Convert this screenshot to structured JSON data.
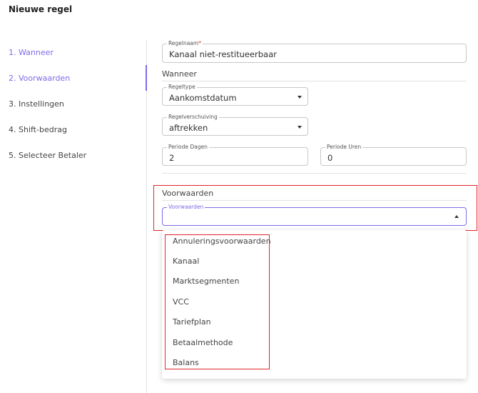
{
  "header": {
    "title": "Nieuwe regel"
  },
  "nav": {
    "items": [
      "1. Wanneer",
      "2. Voorwaarden",
      "3. Instellingen",
      "4. Shift-bedrag",
      "5. Selecteer Betaler"
    ],
    "active": [
      0,
      1
    ]
  },
  "form": {
    "rule_name": {
      "label": "Regelnaam",
      "required_mark": "*",
      "value": "Kanaal niet-restitueerbaar"
    },
    "when_section": "Wanneer",
    "rule_type": {
      "label": "Regeltype",
      "value": "Aankomstdatum"
    },
    "rule_shift": {
      "label": "Regelverschuiving",
      "value": "aftrekken"
    },
    "period_days": {
      "label": "Periode Dagen",
      "value": "2"
    },
    "period_hours": {
      "label": "Periode Uren",
      "value": "0"
    },
    "conditions_section": "Voorwaarden",
    "conditions": {
      "label": "Voorwaarden",
      "options": [
        "Annuleringsvoorwaarden",
        "Kanaal",
        "Marktsegmenten",
        "VCC",
        "Tariefplan",
        "Betaalmethode",
        "Balans"
      ]
    }
  }
}
